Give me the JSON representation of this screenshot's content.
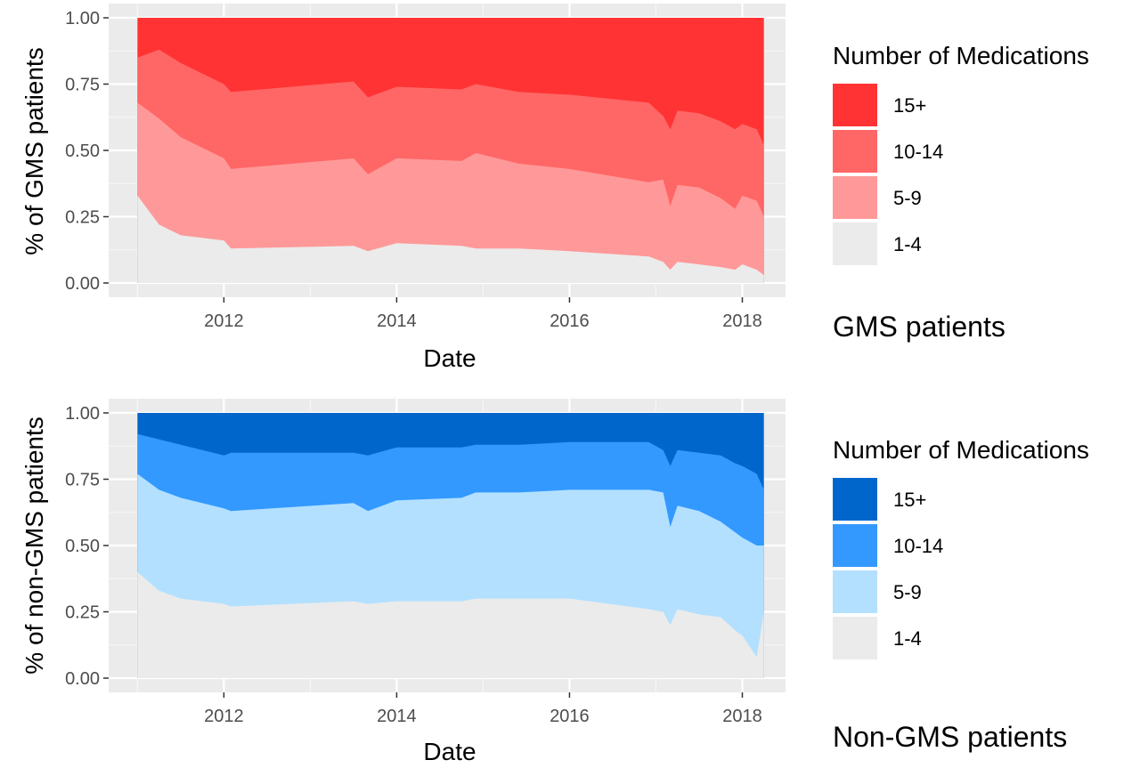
{
  "chart_data": [
    {
      "type": "area",
      "stacked": true,
      "normalized": true,
      "panel_caption": "GMS patients",
      "xlabel": "Date",
      "ylabel": "% of GMS patients",
      "xlim": [
        "2010-09-01",
        "2018-07-01"
      ],
      "ylim": [
        0,
        1
      ],
      "x_ticks": [
        "2012",
        "2014",
        "2016",
        "2018"
      ],
      "y_ticks": [
        "0.00",
        "0.25",
        "0.50",
        "0.75",
        "1.00"
      ],
      "grid": true,
      "legend": {
        "title": "Number of Medications",
        "placement": "right",
        "entries": [
          "15+",
          "10-14",
          "5-9",
          "1-4"
        ],
        "colors": [
          "#ff3333",
          "#ff6666",
          "#ff9999",
          "#ebebeb"
        ]
      },
      "x": [
        "2011-01",
        "2011-04",
        "2011-07",
        "2012-01",
        "2012-02",
        "2013-07",
        "2013-09",
        "2014-01",
        "2014-10",
        "2014-12",
        "2015-06",
        "2016-01",
        "2016-12",
        "2017-02",
        "2017-03",
        "2017-04",
        "2017-07",
        "2017-10",
        "2017-12",
        "2018-01",
        "2018-03",
        "2018-04"
      ],
      "series": [
        {
          "name": "1-4",
          "cumulative_top": [
            0.33,
            0.22,
            0.18,
            0.16,
            0.13,
            0.14,
            0.12,
            0.15,
            0.14,
            0.13,
            0.13,
            0.12,
            0.1,
            0.08,
            0.05,
            0.08,
            0.07,
            0.06,
            0.05,
            0.07,
            0.05,
            0.03
          ]
        },
        {
          "name": "5-9",
          "cumulative_top": [
            0.68,
            0.62,
            0.55,
            0.47,
            0.43,
            0.47,
            0.41,
            0.47,
            0.46,
            0.49,
            0.45,
            0.43,
            0.38,
            0.39,
            0.29,
            0.37,
            0.36,
            0.32,
            0.28,
            0.33,
            0.31,
            0.25
          ]
        },
        {
          "name": "10-14",
          "cumulative_top": [
            0.85,
            0.88,
            0.83,
            0.75,
            0.72,
            0.76,
            0.7,
            0.74,
            0.73,
            0.75,
            0.72,
            0.71,
            0.68,
            0.63,
            0.58,
            0.65,
            0.64,
            0.61,
            0.58,
            0.6,
            0.58,
            0.52
          ]
        },
        {
          "name": "15+",
          "cumulative_top": [
            1,
            1,
            1,
            1,
            1,
            1,
            1,
            1,
            1,
            1,
            1,
            1,
            1,
            1,
            1,
            1,
            1,
            1,
            1,
            1,
            1,
            1
          ]
        }
      ]
    },
    {
      "type": "area",
      "stacked": true,
      "normalized": true,
      "panel_caption": "Non-GMS patients",
      "xlabel": "Date",
      "ylabel": "% of non-GMS patients",
      "xlim": [
        "2010-09-01",
        "2018-07-01"
      ],
      "ylim": [
        0,
        1
      ],
      "x_ticks": [
        "2012",
        "2014",
        "2016",
        "2018"
      ],
      "y_ticks": [
        "0.00",
        "0.25",
        "0.50",
        "0.75",
        "1.00"
      ],
      "grid": true,
      "legend": {
        "title": "Number of Medications",
        "placement": "right",
        "entries": [
          "15+",
          "10-14",
          "5-9",
          "1-4"
        ],
        "colors": [
          "#0066cc",
          "#3399ff",
          "#b3e0ff",
          "#ebebeb"
        ]
      },
      "x": [
        "2011-01",
        "2011-04",
        "2011-07",
        "2012-01",
        "2012-02",
        "2013-07",
        "2013-09",
        "2014-01",
        "2014-10",
        "2014-12",
        "2015-06",
        "2016-01",
        "2016-12",
        "2017-02",
        "2017-03",
        "2017-04",
        "2017-07",
        "2017-10",
        "2017-12",
        "2018-01",
        "2018-03",
        "2018-04"
      ],
      "series": [
        {
          "name": "1-4",
          "cumulative_top": [
            0.4,
            0.33,
            0.3,
            0.28,
            0.27,
            0.29,
            0.28,
            0.29,
            0.29,
            0.3,
            0.3,
            0.3,
            0.26,
            0.25,
            0.2,
            0.26,
            0.24,
            0.23,
            0.18,
            0.16,
            0.08,
            0.25
          ]
        },
        {
          "name": "5-9",
          "cumulative_top": [
            0.77,
            0.71,
            0.68,
            0.64,
            0.63,
            0.66,
            0.63,
            0.67,
            0.68,
            0.7,
            0.7,
            0.71,
            0.71,
            0.7,
            0.57,
            0.65,
            0.63,
            0.59,
            0.55,
            0.53,
            0.5,
            0.5
          ]
        },
        {
          "name": "10-14",
          "cumulative_top": [
            0.92,
            0.9,
            0.88,
            0.84,
            0.85,
            0.85,
            0.84,
            0.87,
            0.87,
            0.88,
            0.88,
            0.89,
            0.89,
            0.86,
            0.8,
            0.86,
            0.85,
            0.84,
            0.81,
            0.8,
            0.77,
            0.71
          ]
        },
        {
          "name": "15+",
          "cumulative_top": [
            1,
            1,
            1,
            1,
            1,
            1,
            1,
            1,
            1,
            1,
            1,
            1,
            1,
            1,
            1,
            1,
            1,
            1,
            1,
            1,
            1,
            1
          ]
        }
      ]
    }
  ]
}
